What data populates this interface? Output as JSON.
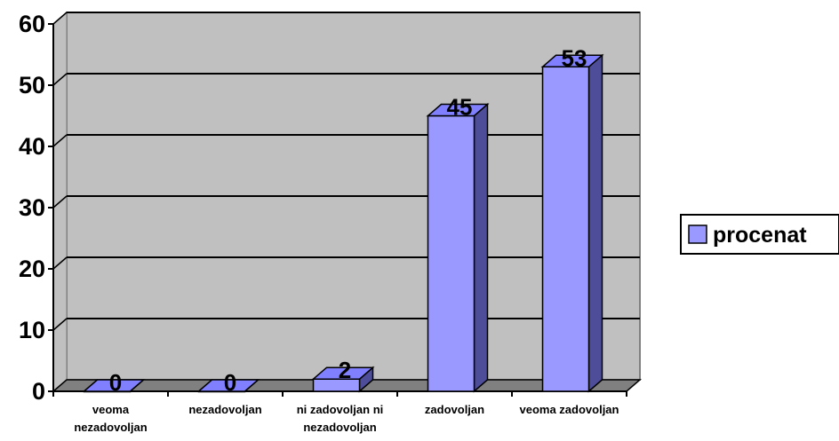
{
  "chart_data": {
    "type": "bar",
    "style": "3d-column",
    "categories": [
      "veoma nezadovoljan",
      "nezadovoljan",
      "ni zadovoljan ni nezadovoljan",
      "zadovoljan",
      "veoma zadovoljan"
    ],
    "series": [
      {
        "name": "procenat",
        "values": [
          0,
          0,
          2,
          45,
          53
        ]
      }
    ],
    "data_labels": [
      "0",
      "0",
      "2",
      "45",
      "53"
    ],
    "yticks": [
      "0",
      "10",
      "20",
      "30",
      "40",
      "50",
      "60"
    ],
    "ylim": [
      0,
      60
    ],
    "grid": true,
    "legend_position": "right",
    "title": "",
    "xlabel": "",
    "ylabel": ""
  },
  "colors": {
    "plot_background": "#c0c0c0",
    "floor": "#808080",
    "bar_front": "#9999ff",
    "bar_top": "#8080ff",
    "bar_side": "#4d4d99",
    "gridline": "#000000"
  }
}
